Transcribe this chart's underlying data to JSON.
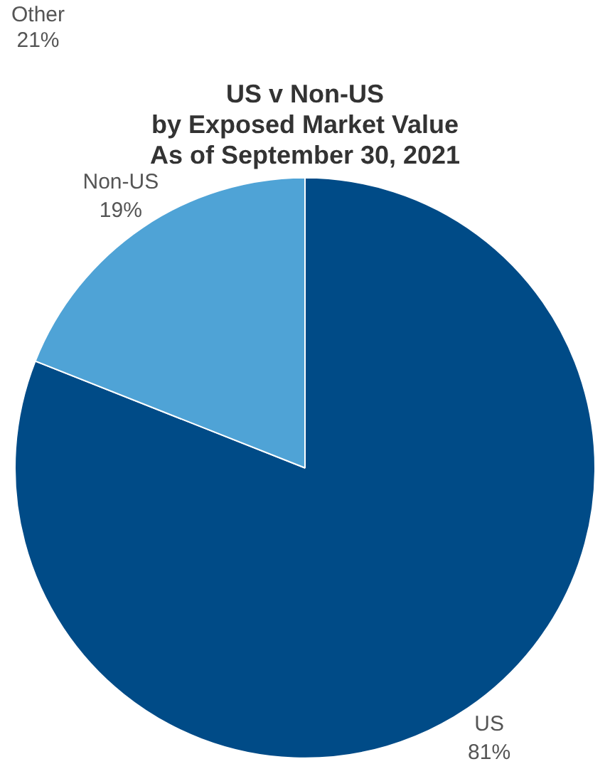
{
  "chart_data": {
    "type": "pie",
    "title": "US v Non-US\nby Exposed Market Value\nAs of September 30, 2021",
    "categories": [
      "US",
      "Non-US"
    ],
    "values": [
      81,
      19
    ],
    "colors": [
      "#004b87",
      "#4fa3d6"
    ],
    "value_labels": [
      "81%",
      "19%"
    ],
    "annotations": [
      "Other\n21%"
    ]
  }
}
